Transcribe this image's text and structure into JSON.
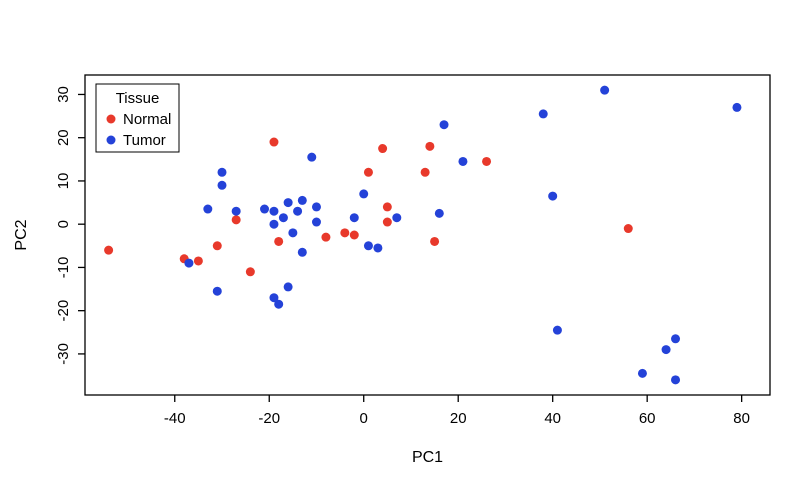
{
  "chart_data": {
    "type": "scatter",
    "title": "",
    "xlabel": "PC1",
    "ylabel": "PC2",
    "xlim": [
      -59,
      86
    ],
    "ylim": [
      -39.5,
      34.5
    ],
    "xticks": [
      -40,
      -20,
      0,
      20,
      40,
      60,
      80
    ],
    "yticks": [
      -30,
      -20,
      -10,
      0,
      10,
      20,
      30
    ],
    "grid": false,
    "point_color_normal": "#e8392b",
    "point_color_tumor": "#2442d8",
    "legend": {
      "title": "Tissue",
      "position": "top-left",
      "entries": [
        {
          "label": "Normal",
          "color": "#e8392b"
        },
        {
          "label": "Tumor",
          "color": "#2442d8"
        }
      ]
    },
    "series": [
      {
        "name": "Normal",
        "color": "#e8392b",
        "points": [
          [
            -54,
            -6
          ],
          [
            -38,
            -8
          ],
          [
            -35,
            -8.5
          ],
          [
            -31,
            -5
          ],
          [
            -27,
            1
          ],
          [
            -24,
            -11
          ],
          [
            -19,
            19
          ],
          [
            -18,
            -4
          ],
          [
            -8,
            -3
          ],
          [
            -4,
            -2
          ],
          [
            -2,
            -2.5
          ],
          [
            1,
            12
          ],
          [
            4,
            17.5
          ],
          [
            5,
            4
          ],
          [
            5,
            0.5
          ],
          [
            13,
            12
          ],
          [
            14,
            18
          ],
          [
            15,
            -4
          ],
          [
            26,
            14.5
          ],
          [
            56,
            -1
          ]
        ]
      },
      {
        "name": "Tumor",
        "color": "#2442d8",
        "points": [
          [
            -37,
            -9
          ],
          [
            -33,
            3.5
          ],
          [
            -31,
            -15.5
          ],
          [
            -30,
            9
          ],
          [
            -30,
            12
          ],
          [
            -27,
            3
          ],
          [
            -21,
            3.5
          ],
          [
            -19,
            3
          ],
          [
            -19,
            0
          ],
          [
            -19,
            -17
          ],
          [
            -18,
            -18.5
          ],
          [
            -17,
            1.5
          ],
          [
            -16,
            5
          ],
          [
            -16,
            -14.5
          ],
          [
            -15,
            -2
          ],
          [
            -14,
            3
          ],
          [
            -13,
            5.5
          ],
          [
            -13,
            -6.5
          ],
          [
            -11,
            15.5
          ],
          [
            -10,
            4
          ],
          [
            -10,
            0.5
          ],
          [
            -2,
            1.5
          ],
          [
            0,
            7
          ],
          [
            1,
            -5
          ],
          [
            3,
            -5.5
          ],
          [
            7,
            1.5
          ],
          [
            16,
            2.5
          ],
          [
            17,
            23
          ],
          [
            21,
            14.5
          ],
          [
            38,
            25.5
          ],
          [
            40,
            6.5
          ],
          [
            41,
            -24.5
          ],
          [
            51,
            31
          ],
          [
            59,
            -34.5
          ],
          [
            64,
            -29
          ],
          [
            66,
            -26.5
          ],
          [
            66,
            -36
          ],
          [
            79,
            27
          ]
        ]
      }
    ]
  }
}
